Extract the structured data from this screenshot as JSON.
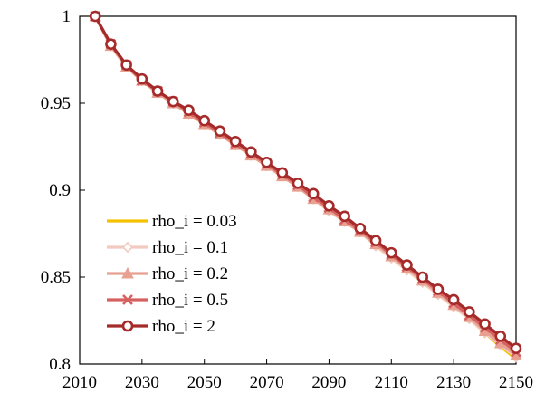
{
  "chart_data": {
    "type": "line",
    "title": "",
    "xlabel": "",
    "ylabel": "",
    "xlim": [
      2010,
      2150
    ],
    "ylim": [
      0.8,
      1.0
    ],
    "x_ticks": [
      2010,
      2030,
      2050,
      2070,
      2090,
      2110,
      2130,
      2150
    ],
    "y_ticks": [
      0.8,
      0.85,
      0.9,
      0.95,
      1.0
    ],
    "x_tick_labels": [
      "2010",
      "2030",
      "2050",
      "2070",
      "2090",
      "2110",
      "2130",
      "2150"
    ],
    "y_tick_labels": [
      "0.8",
      "0.85",
      "0.9",
      "0.95",
      "1"
    ],
    "grid": false,
    "legend_position": "bottom-left",
    "x": [
      2015,
      2020,
      2025,
      2030,
      2035,
      2040,
      2045,
      2050,
      2055,
      2060,
      2065,
      2070,
      2075,
      2080,
      2085,
      2090,
      2095,
      2100,
      2105,
      2110,
      2115,
      2120,
      2125,
      2130,
      2135,
      2140,
      2145,
      2150
    ],
    "series": [
      {
        "name": "rho_i = 0.03",
        "color": "#f5c200",
        "marker": "none",
        "values": [
          1.0,
          0.983,
          0.971,
          0.963,
          0.956,
          0.95,
          0.944,
          0.938,
          0.932,
          0.926,
          0.92,
          0.914,
          0.908,
          0.902,
          0.895,
          0.888,
          0.882,
          0.876,
          0.868,
          0.861,
          0.854,
          0.847,
          0.84,
          0.833,
          0.826,
          0.818,
          0.81,
          0.803
        ]
      },
      {
        "name": "rho_i = 0.1",
        "color": "#f2cbc0",
        "marker": "diamond",
        "values": [
          1.0,
          0.983,
          0.971,
          0.963,
          0.956,
          0.95,
          0.944,
          0.938,
          0.932,
          0.926,
          0.92,
          0.914,
          0.908,
          0.902,
          0.895,
          0.888,
          0.882,
          0.876,
          0.868,
          0.861,
          0.854,
          0.847,
          0.84,
          0.833,
          0.826,
          0.818,
          0.811,
          0.804
        ]
      },
      {
        "name": "rho_i = 0.2",
        "color": "#e8a090",
        "marker": "triangle",
        "values": [
          1.0,
          0.983,
          0.971,
          0.963,
          0.956,
          0.95,
          0.944,
          0.938,
          0.932,
          0.926,
          0.92,
          0.914,
          0.908,
          0.902,
          0.895,
          0.889,
          0.882,
          0.876,
          0.869,
          0.862,
          0.855,
          0.848,
          0.841,
          0.834,
          0.827,
          0.819,
          0.812,
          0.805
        ]
      },
      {
        "name": "rho_i = 0.5",
        "color": "#d66060",
        "marker": "x",
        "values": [
          1.0,
          0.984,
          0.972,
          0.963,
          0.957,
          0.951,
          0.945,
          0.939,
          0.933,
          0.927,
          0.921,
          0.915,
          0.909,
          0.903,
          0.896,
          0.89,
          0.883,
          0.877,
          0.87,
          0.863,
          0.856,
          0.849,
          0.842,
          0.835,
          0.828,
          0.821,
          0.814,
          0.807
        ]
      },
      {
        "name": "rho_i = 2",
        "color": "#a52a2a",
        "marker": "circle",
        "values": [
          1.0,
          0.984,
          0.972,
          0.964,
          0.957,
          0.951,
          0.946,
          0.94,
          0.934,
          0.928,
          0.922,
          0.916,
          0.91,
          0.904,
          0.898,
          0.891,
          0.885,
          0.878,
          0.871,
          0.864,
          0.857,
          0.85,
          0.843,
          0.837,
          0.83,
          0.823,
          0.816,
          0.809
        ]
      }
    ]
  }
}
